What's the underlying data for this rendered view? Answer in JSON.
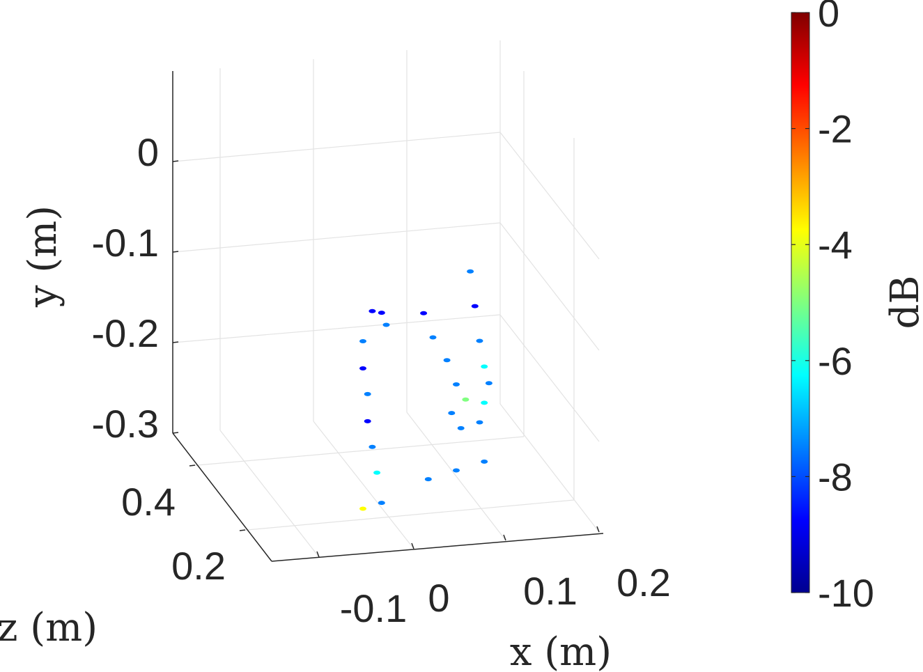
{
  "chart_data": {
    "type": "scatter",
    "subtype": "3d-scatter-colormap",
    "xlabel": "x (m)",
    "ylabel": "y (m)",
    "zlabel": "z (m)",
    "x_ticks": [
      "-0.1",
      "0",
      "0.1",
      "0.2"
    ],
    "y_ticks": [
      "0",
      "-0.1",
      "-0.2",
      "-0.3"
    ],
    "z_ticks": [
      "0.4",
      "0.2"
    ],
    "xlim": [
      -0.2,
      0.2
    ],
    "ylim": [
      -0.3,
      0.08
    ],
    "zlim": [
      0.1,
      0.5
    ],
    "grid": true,
    "colorbar": {
      "label": "dB",
      "ticks": [
        "0",
        "-2",
        "-4",
        "-6",
        "-8",
        "-10"
      ],
      "range": [
        -10,
        0
      ],
      "colormap": "jet",
      "colors": [
        "#00008f",
        "#0000ff",
        "#0080ff",
        "#00ffff",
        "#80ff80",
        "#ffff00",
        "#ff8000",
        "#ff0000",
        "#800000"
      ]
    },
    "series": [
      {
        "points": [
          {
            "x": -0.09,
            "y": -0.07,
            "db": -9
          },
          {
            "x": -0.08,
            "y": -0.075,
            "db": -9
          },
          {
            "x": -0.075,
            "y": -0.09,
            "db": -8
          },
          {
            "x": -0.1,
            "y": -0.1,
            "db": -8
          },
          {
            "x": -0.1,
            "y": -0.13,
            "db": -9
          },
          {
            "x": -0.095,
            "y": -0.16,
            "db": -8
          },
          {
            "x": -0.095,
            "y": -0.19,
            "db": -9
          },
          {
            "x": -0.09,
            "y": -0.22,
            "db": -8
          },
          {
            "x": -0.085,
            "y": -0.25,
            "db": -6
          },
          {
            "x": -0.1,
            "y": -0.285,
            "db": -4
          },
          {
            "x": -0.08,
            "y": -0.285,
            "db": -7
          },
          {
            "x": -0.03,
            "y": -0.275,
            "db": -7
          },
          {
            "x": 0.0,
            "y": -0.275,
            "db": -8
          },
          {
            "x": 0.03,
            "y": -0.275,
            "db": -8
          },
          {
            "x": -0.035,
            "y": -0.09,
            "db": -9
          },
          {
            "x": -0.025,
            "y": -0.12,
            "db": -8
          },
          {
            "x": -0.01,
            "y": -0.15,
            "db": -7
          },
          {
            "x": 0.0,
            "y": -0.18,
            "db": -8
          },
          {
            "x": -0.005,
            "y": -0.21,
            "db": -8
          },
          {
            "x": 0.005,
            "y": -0.23,
            "db": -7
          },
          {
            "x": 0.015,
            "y": -0.06,
            "db": -8
          },
          {
            "x": 0.02,
            "y": -0.1,
            "db": -9
          },
          {
            "x": 0.025,
            "y": -0.14,
            "db": -7
          },
          {
            "x": 0.03,
            "y": -0.17,
            "db": -6
          },
          {
            "x": 0.035,
            "y": -0.19,
            "db": -7
          },
          {
            "x": 0.03,
            "y": -0.21,
            "db": -6
          },
          {
            "x": 0.025,
            "y": -0.23,
            "db": -8
          },
          {
            "x": 0.01,
            "y": -0.2,
            "db": -5
          }
        ]
      }
    ]
  }
}
